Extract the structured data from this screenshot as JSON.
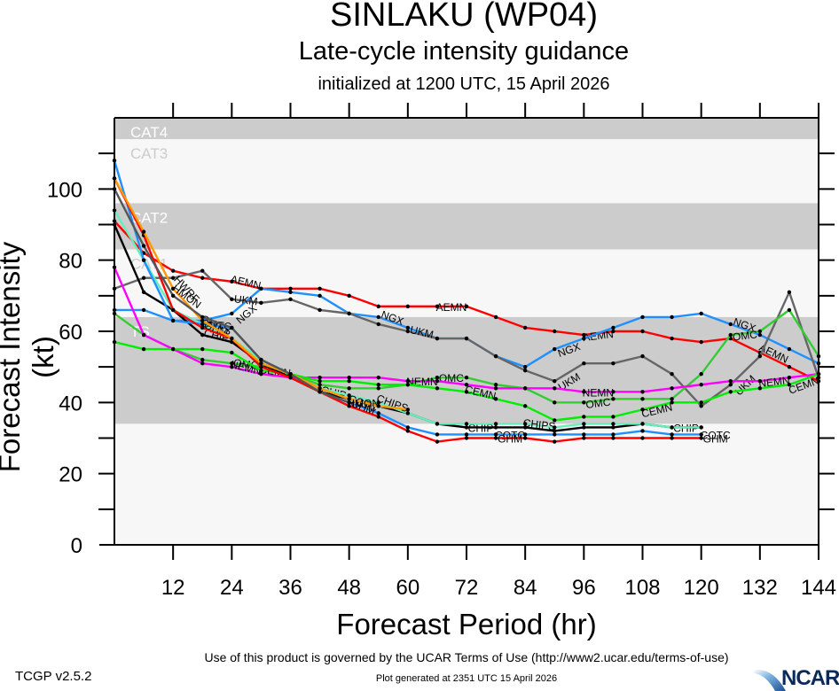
{
  "chart_data": {
    "type": "line",
    "title": "SINLAKU (WP04)",
    "subtitle": "Late-cycle intensity guidance",
    "subtitle2": "initialized at 1200 UTC, 15 April 2026",
    "xlabel": "Forecast Period (hr)",
    "ylabel": "Forecast Intensity (kt)",
    "xlim": [
      0,
      144
    ],
    "ylim": [
      0,
      120
    ],
    "xticks": [
      12,
      24,
      36,
      48,
      60,
      72,
      84,
      96,
      108,
      120,
      132,
      144
    ],
    "yticks": [
      0,
      20,
      40,
      60,
      80,
      100
    ],
    "grid": false,
    "bands": [
      {
        "label": "CAT4",
        "from": 114,
        "to": 120,
        "fill": "#cccccc",
        "text": "#ffffff"
      },
      {
        "label": "CAT3",
        "from": 96,
        "to": 114,
        "fill": "#f7f7f7",
        "text": "#cccccc"
      },
      {
        "label": "CAT2",
        "from": 83,
        "to": 96,
        "fill": "#cccccc",
        "text": "#ffffff"
      },
      {
        "label": "CAT1",
        "from": 64,
        "to": 83,
        "fill": "#f7f7f7",
        "text": "#cccccc"
      },
      {
        "label": "TS",
        "from": 34,
        "to": 64,
        "fill": "#cccccc",
        "text": "#ffffff"
      },
      {
        "label": "",
        "from": 0,
        "to": 34,
        "fill": "#f7f7f7",
        "text": "#cccccc"
      }
    ],
    "series": [
      {
        "name": "AEMN",
        "color": "#ff0000",
        "labels_at": [
          24,
          66,
          96,
          132
        ],
        "x": [
          0,
          6,
          12,
          18,
          24,
          30,
          36,
          42,
          48,
          54,
          60,
          66,
          72,
          78,
          84,
          90,
          96,
          102,
          108,
          114,
          120,
          126,
          132,
          138,
          144
        ],
        "values": [
          91,
          82,
          77,
          75,
          74,
          72,
          72,
          72,
          70,
          67,
          67,
          67,
          67,
          64,
          61,
          60,
          59,
          60,
          60,
          58,
          57,
          58,
          54,
          50,
          46
        ]
      },
      {
        "name": "NGX",
        "color": "#1e90ff",
        "labels_at": [
          24,
          54,
          90,
          126
        ],
        "x": [
          0,
          6,
          12,
          18,
          24,
          30,
          36,
          42,
          48,
          54,
          60,
          66,
          72,
          78,
          84,
          90,
          96,
          102,
          108,
          114,
          120,
          126,
          132,
          138,
          144
        ],
        "values": [
          66,
          66,
          63,
          63,
          65,
          72,
          71,
          70,
          65,
          64,
          61,
          58,
          58,
          53,
          50,
          55,
          58,
          61,
          64,
          64,
          65,
          62,
          59,
          55,
          51
        ]
      },
      {
        "name": "UKM",
        "color": "#666666",
        "labels_at": [
          24,
          60,
          90,
          126
        ],
        "x": [
          0,
          6,
          12,
          18,
          24,
          30,
          36,
          42,
          48,
          54,
          60,
          66,
          72,
          78,
          84,
          90,
          96,
          102,
          108,
          114,
          120,
          126,
          132,
          138,
          144
        ],
        "values": [
          72,
          75,
          75,
          77,
          69,
          68,
          69,
          66,
          65,
          62,
          60,
          58,
          58,
          53,
          49,
          46,
          51,
          51,
          53,
          48,
          39,
          45,
          53,
          71,
          47
        ]
      },
      {
        "name": "OMC",
        "color": "#33cc33",
        "labels_at": [
          24,
          66,
          96,
          126
        ],
        "x": [
          0,
          6,
          12,
          18,
          24,
          30,
          36,
          42,
          48,
          54,
          60,
          66,
          72,
          78,
          84,
          90,
          96,
          102,
          108,
          114,
          120,
          126,
          132,
          138,
          144
        ],
        "values": [
          65,
          59,
          55,
          52,
          51,
          50,
          48,
          45,
          44,
          44,
          45,
          47,
          47,
          45,
          44,
          40,
          40,
          41,
          41,
          41,
          48,
          59,
          60,
          66,
          53
        ]
      },
      {
        "name": "NEMN",
        "color": "#ff00ff",
        "labels_at": [
          24,
          60,
          96,
          132
        ],
        "x": [
          0,
          6,
          12,
          18,
          24,
          30,
          36,
          42,
          48,
          54,
          60,
          66,
          72,
          78,
          84,
          90,
          96,
          102,
          108,
          114,
          120,
          126,
          132,
          138,
          144
        ],
        "values": [
          78,
          59,
          55,
          51,
          50,
          48,
          47,
          47,
          47,
          47,
          46,
          46,
          45,
          44,
          44,
          44,
          43,
          43,
          43,
          44,
          45,
          46,
          46,
          47,
          48
        ]
      },
      {
        "name": "CEMN",
        "color": "#00ee00",
        "labels_at": [
          30,
          72,
          108,
          138
        ],
        "x": [
          0,
          6,
          12,
          18,
          24,
          30,
          36,
          42,
          48,
          54,
          60,
          66,
          72,
          78,
          84,
          90,
          96,
          102,
          108,
          114,
          120,
          126,
          132,
          138,
          144
        ],
        "values": [
          57,
          55,
          55,
          55,
          54,
          49,
          48,
          46,
          46,
          45,
          45,
          44,
          43,
          41,
          39,
          35,
          36,
          36,
          38,
          40,
          40,
          43,
          44,
          45,
          48
        ]
      },
      {
        "name": "CHIP",
        "color": "#000000",
        "labels_at": [
          18,
          42,
          72,
          114
        ],
        "x": [
          0,
          6,
          12,
          18,
          24,
          30,
          36,
          42,
          48,
          54,
          60,
          66,
          72,
          78,
          84,
          90,
          96,
          102,
          108,
          114,
          120
        ],
        "values": [
          90,
          71,
          66,
          59,
          57,
          51,
          47,
          43,
          41,
          39,
          37,
          34,
          33,
          33,
          33,
          32,
          33,
          33,
          34,
          33,
          33
        ]
      },
      {
        "name": "CHIPS",
        "color": "#66eebb",
        "labels_at": [
          18,
          54,
          84
        ],
        "x": [
          0,
          6,
          12,
          18,
          24,
          30,
          36,
          42,
          48,
          54,
          60,
          66,
          72,
          78,
          84,
          90,
          96,
          102,
          108,
          114,
          120
        ],
        "values": [
          94,
          80,
          66,
          62,
          58,
          52,
          48,
          44,
          42,
          40,
          37,
          34,
          34,
          34,
          34,
          33,
          34,
          34,
          34,
          33,
          33
        ]
      },
      {
        "name": "COTC",
        "color": "#1e90ff",
        "labels_at": [
          18,
          48,
          78,
          120
        ],
        "x": [
          0,
          6,
          12,
          18,
          24,
          30,
          36,
          42,
          48,
          54,
          60,
          66,
          72,
          78,
          84,
          90,
          96,
          102,
          108,
          114,
          120
        ],
        "values": [
          108,
          80,
          63,
          62,
          61,
          52,
          48,
          43,
          40,
          37,
          33,
          31,
          31,
          31,
          31,
          31,
          31,
          31,
          32,
          31,
          31
        ]
      },
      {
        "name": "GHM",
        "color": "#ff0000",
        "labels_at": [
          18,
          48,
          78,
          120
        ],
        "x": [
          0,
          6,
          12,
          18,
          24,
          30,
          36,
          42,
          48,
          54,
          60,
          66,
          72,
          78,
          84,
          90,
          96,
          102,
          108,
          114,
          120
        ],
        "values": [
          103,
          87,
          66,
          61,
          58,
          50,
          47,
          43,
          39,
          36,
          32,
          29,
          30,
          30,
          30,
          29,
          30,
          30,
          30,
          30,
          30
        ]
      },
      {
        "name": "HWRF",
        "color": "#ff9900",
        "labels_at": [
          12
        ],
        "x": [
          0,
          6,
          12,
          18,
          24,
          30,
          36,
          42,
          48,
          54,
          60
        ],
        "values": [
          103,
          88,
          72,
          63,
          58,
          51,
          48,
          44,
          41,
          39,
          38
        ]
      },
      {
        "name": "HMON",
        "color": "#555555",
        "labels_at": [
          12,
          48
        ],
        "x": [
          0,
          6,
          12,
          18,
          24,
          30,
          36,
          42,
          48
        ],
        "values": [
          100,
          84,
          70,
          64,
          61,
          52,
          48,
          43,
          40
        ]
      }
    ]
  },
  "footer": {
    "terms": "Use of this product is governed by the UCAR Terms of Use (http://www2.ucar.edu/terms-of-use)",
    "generated": "Plot generated at 2351 UTC   15 April 2026",
    "version": "TCGP v2.5.2",
    "logo": "NCAR"
  }
}
